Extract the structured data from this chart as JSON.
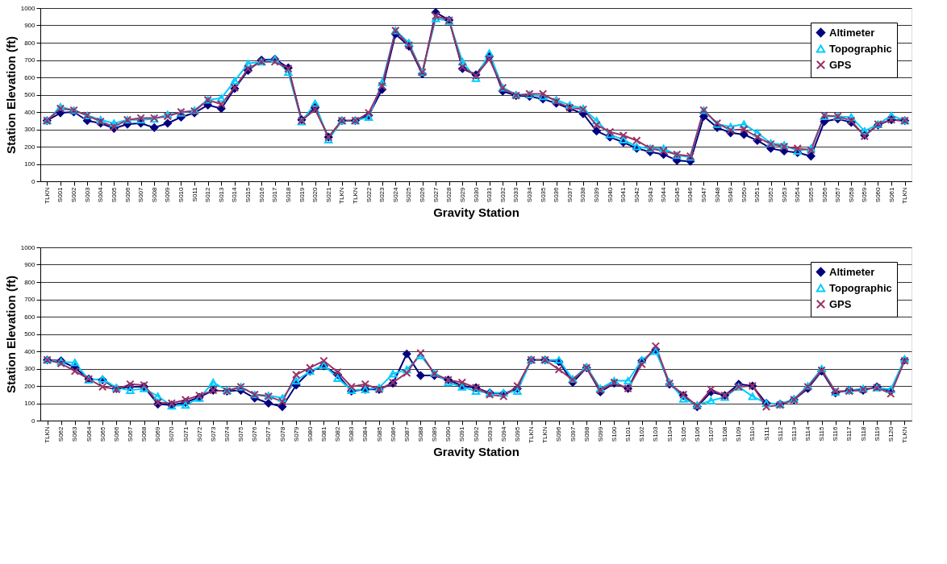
{
  "chart_data": [
    {
      "type": "line",
      "xlabel": "Gravity Station",
      "ylabel": "Station Elevation (ft)",
      "ylim": [
        0,
        1000
      ],
      "yticks": [
        0,
        100,
        200,
        300,
        400,
        500,
        600,
        700,
        800,
        900,
        1000
      ],
      "grid": "y",
      "legend": "top right",
      "line_style": "solid",
      "categories": [
        "TLKN",
        "S001",
        "S002",
        "S003",
        "S004",
        "S005",
        "S006",
        "S007",
        "S008",
        "S009",
        "S010",
        "S011",
        "S012",
        "S013",
        "S014",
        "S015",
        "S016",
        "S017",
        "S018",
        "S019",
        "S020",
        "S021",
        "TLKN",
        "TLKN",
        "S022",
        "S023",
        "S024",
        "S025",
        "S026",
        "S027",
        "S028",
        "S029",
        "S030",
        "S031",
        "S032",
        "S033",
        "S034",
        "S035",
        "S036",
        "S037",
        "S038",
        "S039",
        "S040",
        "S041",
        "S042",
        "S043",
        "S044",
        "S045",
        "S046",
        "S047",
        "S048",
        "S049",
        "S050",
        "S051",
        "S052",
        "S053",
        "S054",
        "S055",
        "S056",
        "S057",
        "S058",
        "S059",
        "S060",
        "S061",
        "TLKN"
      ],
      "series": [
        {
          "name": "Altimeter",
          "color": "#000080",
          "marker": "diamond",
          "values": [
            350,
            395,
            400,
            350,
            335,
            305,
            330,
            335,
            310,
            335,
            370,
            395,
            440,
            420,
            535,
            640,
            700,
            705,
            655,
            355,
            425,
            255,
            350,
            350,
            380,
            530,
            850,
            780,
            620,
            975,
            930,
            650,
            615,
            720,
            520,
            495,
            490,
            475,
            450,
            420,
            390,
            290,
            255,
            225,
            190,
            170,
            155,
            120,
            115,
            375,
            310,
            280,
            270,
            235,
            190,
            175,
            165,
            145,
            345,
            360,
            340,
            265,
            325,
            355,
            350
          ]
        },
        {
          "name": "Topographic",
          "color": "#00ccff",
          "marker": "triangle",
          "values": [
            350,
            430,
            410,
            380,
            355,
            335,
            355,
            355,
            360,
            385,
            395,
            410,
            470,
            480,
            580,
            680,
            690,
            705,
            630,
            345,
            450,
            240,
            350,
            350,
            370,
            570,
            870,
            800,
            630,
            940,
            925,
            690,
            595,
            740,
            540,
            500,
            500,
            490,
            470,
            440,
            420,
            350,
            270,
            240,
            200,
            190,
            190,
            150,
            140,
            410,
            330,
            315,
            330,
            280,
            220,
            210,
            175,
            190,
            375,
            375,
            370,
            290,
            330,
            380,
            350
          ]
        },
        {
          "name": "GPS",
          "color": "#993366",
          "marker": "cross",
          "values": [
            350,
            420,
            410,
            380,
            345,
            315,
            355,
            365,
            365,
            375,
            400,
            405,
            470,
            445,
            540,
            650,
            690,
            690,
            650,
            350,
            415,
            255,
            350,
            350,
            395,
            550,
            870,
            785,
            630,
            955,
            930,
            660,
            610,
            705,
            540,
            495,
            505,
            505,
            460,
            425,
            415,
            325,
            285,
            265,
            235,
            190,
            175,
            155,
            145,
            410,
            335,
            295,
            300,
            255,
            215,
            200,
            190,
            180,
            380,
            375,
            350,
            260,
            330,
            355,
            350
          ]
        }
      ]
    },
    {
      "type": "line",
      "xlabel": "Gravity Station",
      "ylabel": "Station Elevation (ft)",
      "ylim": [
        0,
        1000
      ],
      "yticks": [
        0,
        100,
        200,
        300,
        400,
        500,
        600,
        700,
        800,
        900,
        1000
      ],
      "grid": "y",
      "legend": "top right",
      "line_style": "solid",
      "categories": [
        "TLKN",
        "S062",
        "S063",
        "S064",
        "S065",
        "S066",
        "S067",
        "S068",
        "S069",
        "S070",
        "S071",
        "S072",
        "S073",
        "S074",
        "S075",
        "S076",
        "S077",
        "S078",
        "S079",
        "S080",
        "S081",
        "S082",
        "S083",
        "S084",
        "S085",
        "S086",
        "S087",
        "S088",
        "S089",
        "S090",
        "S091",
        "S092",
        "S093",
        "S094",
        "S095",
        "TLKN",
        "TLKN",
        "S096",
        "S097",
        "S098",
        "S099",
        "S100",
        "S101",
        "S102",
        "S103",
        "S104",
        "S105",
        "S106",
        "S107",
        "S108",
        "S109",
        "S110",
        "S111",
        "S112",
        "S113",
        "S114",
        "S115",
        "S116",
        "S117",
        "S118",
        "S119",
        "S120",
        "TLKN"
      ],
      "series": [
        {
          "name": "Altimeter",
          "color": "#000080",
          "marker": "diamond",
          "values": [
            350,
            345,
            305,
            240,
            235,
            185,
            195,
            195,
            95,
            90,
            105,
            135,
            175,
            170,
            175,
            130,
            100,
            80,
            205,
            285,
            315,
            265,
            170,
            180,
            180,
            215,
            385,
            260,
            260,
            235,
            200,
            190,
            160,
            155,
            185,
            350,
            350,
            340,
            220,
            305,
            165,
            215,
            185,
            345,
            410,
            210,
            145,
            80,
            165,
            145,
            210,
            200,
            100,
            95,
            120,
            185,
            285,
            160,
            175,
            175,
            195,
            170,
            350
          ]
        },
        {
          "name": "Topographic",
          "color": "#00ccff",
          "marker": "triangle",
          "values": [
            350,
            340,
            335,
            235,
            240,
            190,
            175,
            185,
            140,
            85,
            90,
            130,
            220,
            175,
            195,
            150,
            145,
            130,
            230,
            285,
            320,
            245,
            175,
            180,
            190,
            270,
            295,
            375,
            275,
            220,
            195,
            170,
            160,
            160,
            170,
            350,
            350,
            350,
            240,
            310,
            185,
            230,
            230,
            350,
            400,
            220,
            125,
            90,
            115,
            135,
            195,
            140,
            100,
            95,
            125,
            200,
            300,
            165,
            175,
            185,
            190,
            180,
            355
          ]
        },
        {
          "name": "GPS",
          "color": "#993366",
          "marker": "cross",
          "values": [
            350,
            330,
            285,
            240,
            195,
            180,
            210,
            205,
            105,
            100,
            120,
            145,
            175,
            170,
            195,
            150,
            140,
            110,
            265,
            305,
            345,
            280,
            195,
            210,
            180,
            220,
            275,
            390,
            270,
            235,
            220,
            190,
            150,
            140,
            200,
            350,
            350,
            295,
            235,
            305,
            175,
            220,
            185,
            325,
            430,
            215,
            150,
            85,
            180,
            145,
            195,
            200,
            80,
            90,
            120,
            195,
            290,
            170,
            170,
            180,
            190,
            155,
            345
          ]
        }
      ]
    }
  ]
}
